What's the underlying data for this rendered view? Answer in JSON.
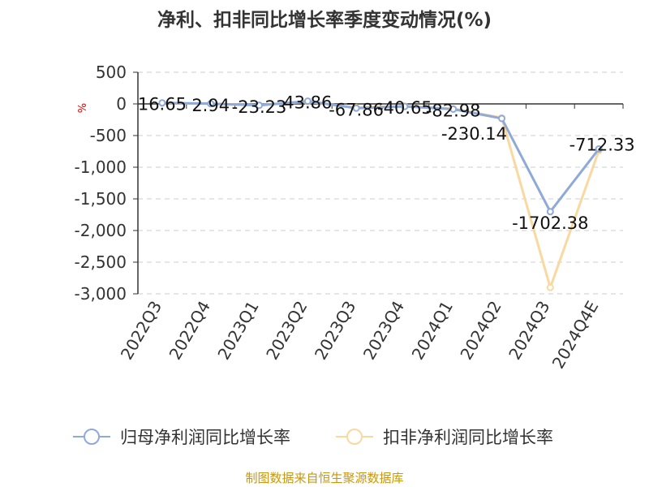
{
  "chart_data": {
    "type": "line",
    "title": "净利、扣非同比增长率季度变动情况(%)",
    "ylabel": "%",
    "xlabel": "",
    "ylim": [
      -3000,
      500
    ],
    "yticks": [
      500,
      0,
      -500,
      -1000,
      -1500,
      -2000,
      -2500,
      -3000
    ],
    "ytick_labels": [
      "500",
      "0",
      "-500",
      "-1,000",
      "-1,500",
      "-2,000",
      "-2,500",
      "-3,000"
    ],
    "categories": [
      "2022Q3",
      "2022Q4",
      "2023Q1",
      "2023Q2",
      "2023Q3",
      "2023Q4",
      "2024Q1",
      "2024Q2",
      "2024Q3",
      "2024Q4E"
    ],
    "grid": true,
    "legend_position": "bottom",
    "series": [
      {
        "name": "归母净利润同比增长率",
        "color": "#8fa9d9",
        "values": [
          16.65,
          2.94,
          -23.23,
          43.86,
          -67.86,
          -40.65,
          -82.98,
          -230.14,
          -1702.38,
          -712.33
        ],
        "labels": [
          "16.65",
          "2.94",
          "-23.23",
          "43.86",
          "-67.86",
          "-40.65",
          "-82.98",
          "-230.14",
          "-1702.38",
          "-712.33"
        ]
      },
      {
        "name": "扣非净利润同比增长率",
        "color": "#f9d9a0",
        "values": [
          12,
          4,
          -20,
          35,
          -60,
          -35,
          -75,
          -220,
          -2900,
          -740
        ],
        "labels": []
      }
    ]
  },
  "source_note": "制图数据来自恒生聚源数据库"
}
